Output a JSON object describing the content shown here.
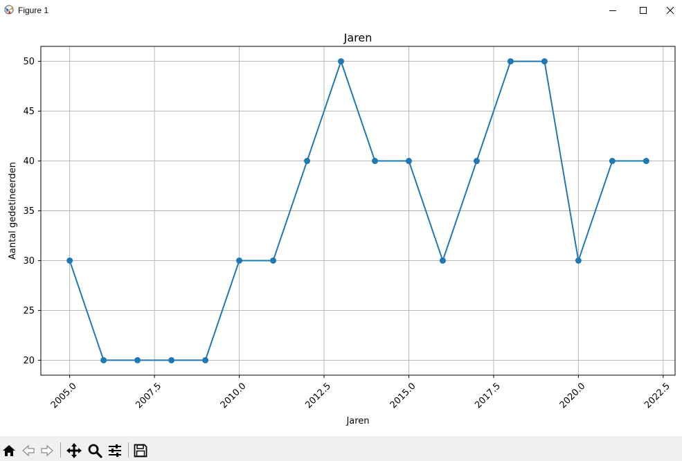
{
  "window": {
    "title": "Figure 1"
  },
  "toolbar": {
    "buttons": [
      {
        "name": "home-icon"
      },
      {
        "name": "back-arrow-icon"
      },
      {
        "name": "forward-arrow-icon"
      },
      {
        "name": "pan-icon"
      },
      {
        "name": "zoom-icon"
      },
      {
        "name": "configure-subplots-icon"
      },
      {
        "name": "save-icon"
      }
    ]
  },
  "colors": {
    "series": "#1f77b4",
    "grid": "#b0b0b0"
  },
  "chart_data": {
    "type": "line",
    "title": "Jaren",
    "xlabel": "Jaren",
    "ylabel": "Aantal gedetineerden",
    "x": [
      2005,
      2006,
      2007,
      2008,
      2009,
      2010,
      2011,
      2012,
      2013,
      2014,
      2015,
      2016,
      2017,
      2018,
      2019,
      2020,
      2021,
      2022
    ],
    "series": [
      {
        "values": [
          30,
          20,
          20,
          20,
          20,
          30,
          30,
          40,
          50,
          40,
          40,
          30,
          40,
          50,
          50,
          30,
          40,
          40
        ],
        "marker": "circle"
      }
    ],
    "xlim": [
      2004.15,
      2022.85
    ],
    "ylim": [
      18.5,
      51.5
    ],
    "xticks": [
      2005.0,
      2007.5,
      2010.0,
      2012.5,
      2015.0,
      2017.5,
      2020.0,
      2022.5
    ],
    "xtick_labels": [
      "2005.0",
      "2007.5",
      "2010.0",
      "2012.5",
      "2015.0",
      "2017.5",
      "2020.0",
      "2022.5"
    ],
    "yticks": [
      20,
      25,
      30,
      35,
      40,
      45,
      50
    ],
    "ytick_labels": [
      "20",
      "25",
      "30",
      "35",
      "40",
      "45",
      "50"
    ],
    "grid": true,
    "xtick_rotation": 45
  }
}
